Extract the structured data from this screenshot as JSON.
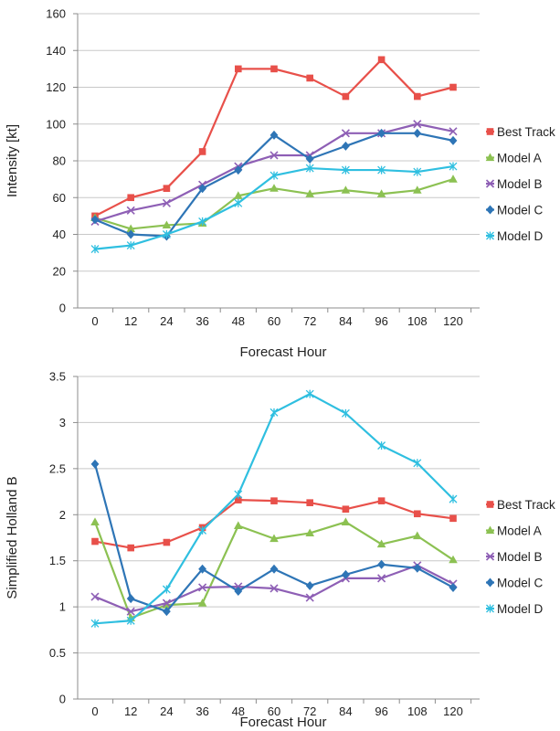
{
  "chart_data": [
    {
      "type": "line",
      "xlabel": "Forecast Hour",
      "ylabel": "Intensity [kt]",
      "categories": [
        "0",
        "12",
        "24",
        "36",
        "48",
        "60",
        "72",
        "84",
        "96",
        "108",
        "120"
      ],
      "ylim": [
        0,
        160
      ],
      "yticks": [
        "0",
        "20",
        "40",
        "60",
        "80",
        "100",
        "120",
        "140",
        "160"
      ],
      "grid": true,
      "legend_placement": "right",
      "series": [
        {
          "name": "Best Track",
          "color": "#e8504a",
          "marker": "square",
          "values": [
            50,
            60,
            65,
            85,
            130,
            130,
            125,
            115,
            135,
            115,
            120
          ]
        },
        {
          "name": "Model A",
          "color": "#8cc152",
          "marker": "triangle",
          "values": [
            49,
            43,
            45,
            46,
            61,
            65,
            62,
            64,
            62,
            64,
            70
          ]
        },
        {
          "name": "Model B",
          "color": "#8e5fb5",
          "marker": "x",
          "values": [
            47,
            53,
            57,
            67,
            77,
            83,
            83,
            95,
            95,
            100,
            96
          ]
        },
        {
          "name": "Model C",
          "color": "#2e75b6",
          "marker": "diamond",
          "values": [
            48,
            40,
            39,
            65,
            75,
            94,
            81,
            88,
            95,
            95,
            91
          ]
        },
        {
          "name": "Model D",
          "color": "#2fbfe0",
          "marker": "asterisk",
          "values": [
            32,
            34,
            40,
            47,
            57,
            72,
            76,
            75,
            75,
            74,
            77
          ]
        }
      ]
    },
    {
      "type": "line",
      "xlabel": "Forecast Hour",
      "ylabel": "Simplified Holland B",
      "categories": [
        "0",
        "12",
        "24",
        "36",
        "48",
        "60",
        "72",
        "84",
        "96",
        "108",
        "120"
      ],
      "ylim": [
        0,
        3.5
      ],
      "yticks": [
        "0",
        "0.5",
        "1",
        "1.5",
        "2",
        "2.5",
        "3",
        "3.5"
      ],
      "grid": true,
      "legend_placement": "right",
      "series": [
        {
          "name": "Best Track",
          "color": "#e8504a",
          "marker": "square",
          "values": [
            1.71,
            1.64,
            1.7,
            1.86,
            2.16,
            2.15,
            2.13,
            2.06,
            2.15,
            2.01,
            1.96
          ]
        },
        {
          "name": "Model A",
          "color": "#8cc152",
          "marker": "triangle",
          "values": [
            1.92,
            0.88,
            1.02,
            1.04,
            1.88,
            1.74,
            1.8,
            1.92,
            1.68,
            1.77,
            1.51
          ]
        },
        {
          "name": "Model B",
          "color": "#8e5fb5",
          "marker": "x",
          "values": [
            1.11,
            0.95,
            1.04,
            1.21,
            1.22,
            1.2,
            1.1,
            1.31,
            1.31,
            1.45,
            1.25
          ]
        },
        {
          "name": "Model C",
          "color": "#2e75b6",
          "marker": "diamond",
          "values": [
            2.55,
            1.09,
            0.95,
            1.41,
            1.17,
            1.41,
            1.23,
            1.35,
            1.46,
            1.42,
            1.21
          ]
        },
        {
          "name": "Model D",
          "color": "#2fbfe0",
          "marker": "asterisk",
          "values": [
            0.82,
            0.85,
            1.19,
            1.83,
            2.22,
            3.11,
            3.31,
            3.1,
            2.75,
            2.56,
            2.17
          ]
        }
      ]
    }
  ]
}
